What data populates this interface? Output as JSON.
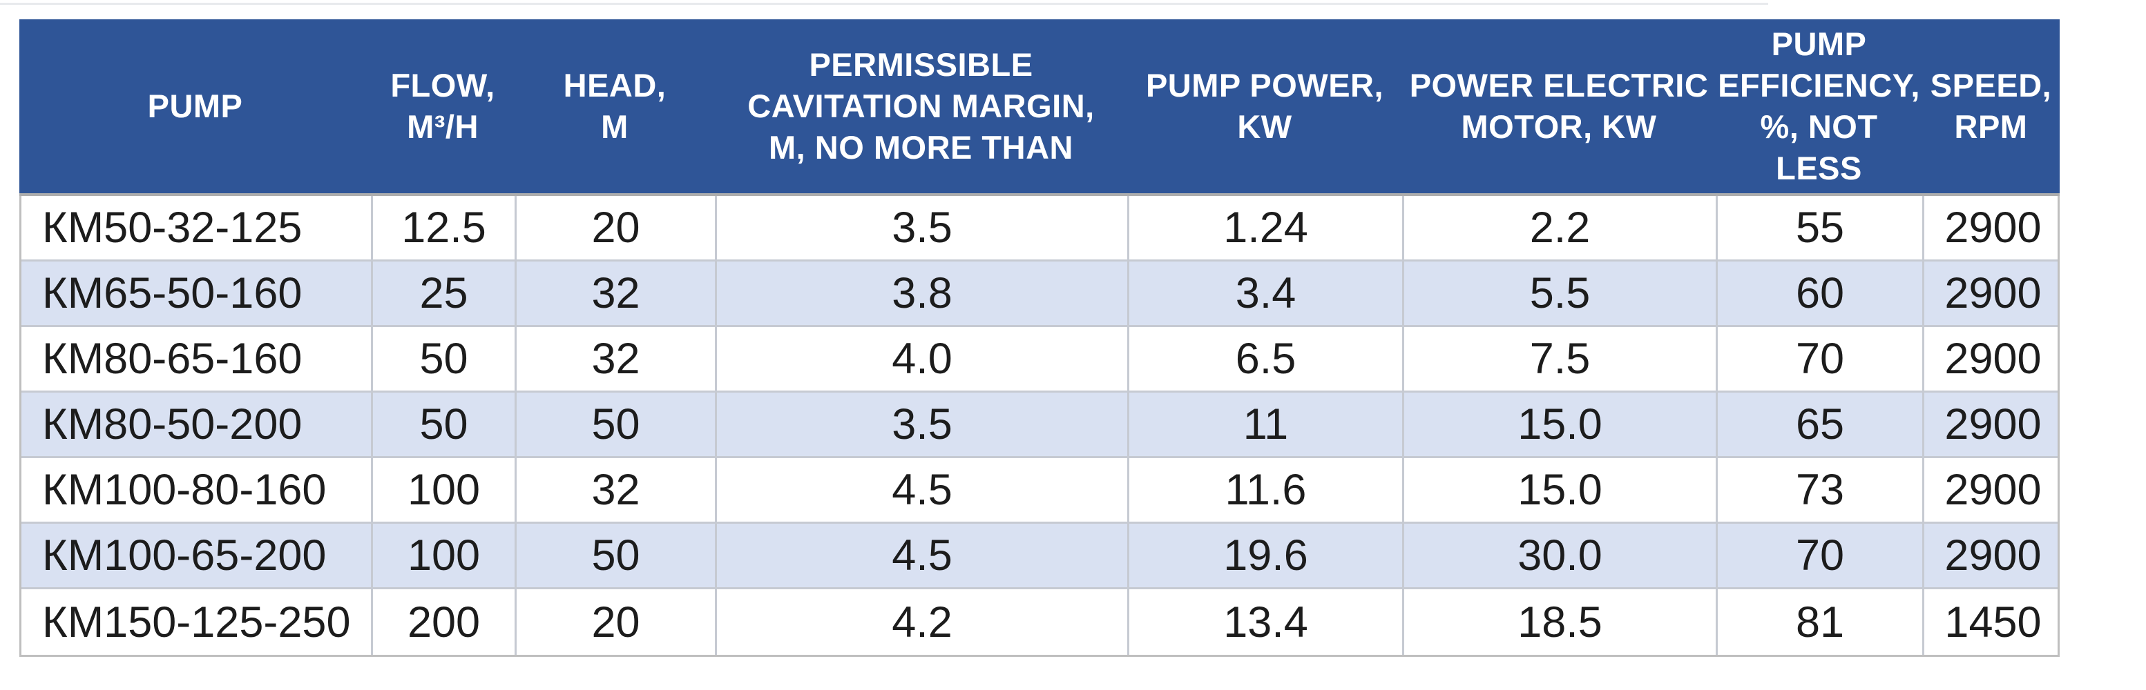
{
  "colors": {
    "header_bg": "#2F5597",
    "band_row_bg": "#D9E1F2",
    "grid_line": "#C6CAD2",
    "header_text": "#FFFFFF",
    "body_text": "#1C1C1C"
  },
  "table": {
    "columns": [
      {
        "key": "pump",
        "label": "PUMP"
      },
      {
        "key": "flow",
        "label": "FLOW,\nM³/H"
      },
      {
        "key": "head",
        "label": "HEAD,\nM"
      },
      {
        "key": "cavitation",
        "label": "PERMISSIBLE\nCAVITATION MARGIN,\nM, NO MORE THAN"
      },
      {
        "key": "pump_power",
        "label": "PUMP POWER,\nKW"
      },
      {
        "key": "motor_power",
        "label": "POWER ELECTRIC\nMOTOR, KW"
      },
      {
        "key": "efficiency",
        "label": "PUMP\nEFFICIENCY,\n%, NOT LESS"
      },
      {
        "key": "speed",
        "label": "SPEED,\nRPM"
      }
    ],
    "rows": [
      {
        "pump": "КМ50-32-125",
        "flow": "12.5",
        "head": "20",
        "cavitation": "3.5",
        "pump_power": "1.24",
        "motor_power": "2.2",
        "efficiency": "55",
        "speed": "2900"
      },
      {
        "pump": "КМ65-50-160",
        "flow": "25",
        "head": "32",
        "cavitation": "3.8",
        "pump_power": "3.4",
        "motor_power": "5.5",
        "efficiency": "60",
        "speed": "2900"
      },
      {
        "pump": "КМ80-65-160",
        "flow": "50",
        "head": "32",
        "cavitation": "4.0",
        "pump_power": "6.5",
        "motor_power": "7.5",
        "efficiency": "70",
        "speed": "2900"
      },
      {
        "pump": "КМ80-50-200",
        "flow": "50",
        "head": "50",
        "cavitation": "3.5",
        "pump_power": "11",
        "motor_power": "15.0",
        "efficiency": "65",
        "speed": "2900"
      },
      {
        "pump": "КМ100-80-160",
        "flow": "100",
        "head": "32",
        "cavitation": "4.5",
        "pump_power": "11.6",
        "motor_power": "15.0",
        "efficiency": "73",
        "speed": "2900"
      },
      {
        "pump": "КМ100-65-200",
        "flow": "100",
        "head": "50",
        "cavitation": "4.5",
        "pump_power": "19.6",
        "motor_power": "30.0",
        "efficiency": "70",
        "speed": "2900"
      },
      {
        "pump": "КМ150-125-250",
        "flow": "200",
        "head": "20",
        "cavitation": "4.2",
        "pump_power": "13.4",
        "motor_power": "18.5",
        "efficiency": "81",
        "speed": "1450"
      }
    ]
  }
}
